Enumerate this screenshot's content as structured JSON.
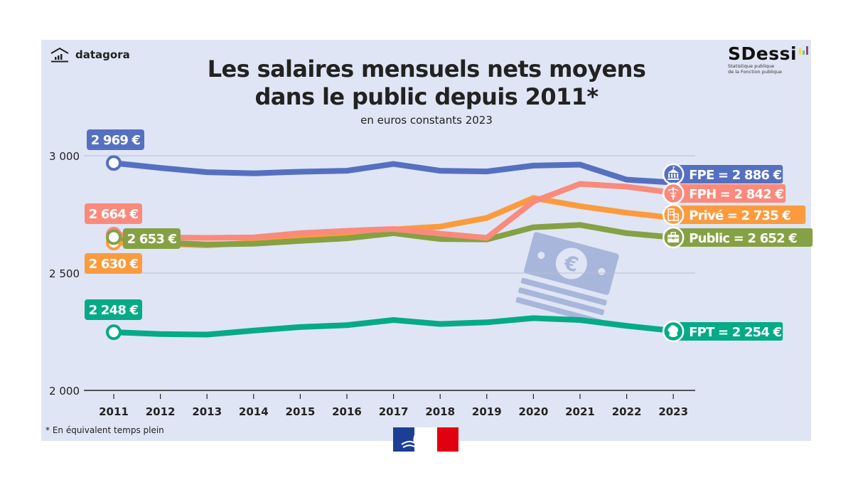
{
  "brand": {
    "logo_left": "datagora",
    "logo_right": "SDessi",
    "logo_right_sub1": "Statistique publique",
    "logo_right_sub2": "de la Fonction publique"
  },
  "header": {
    "title_line1": "Les salaires mensuels nets moyens",
    "title_line2": "dans le public depuis 2011*",
    "subtitle": "en euros constants 2023"
  },
  "footnote": "* En équivalent temps plein",
  "colors": {
    "background": "#dfe5f4",
    "FPE": "#5570c0",
    "FPH": "#fa8a7c",
    "Prive": "#fb9b3e",
    "Public": "#85a144",
    "FPT": "#05aa87",
    "decor": "#a9b6db"
  },
  "chart_data": {
    "type": "line",
    "title": "Les salaires mensuels nets moyens dans le public depuis 2011*",
    "subtitle": "en euros constants 2023",
    "xlabel": "",
    "ylabel": "",
    "ylim": [
      2000,
      3000
    ],
    "yticks": [
      2000,
      2500,
      3000
    ],
    "ytick_labels": [
      "2 000",
      "2 500",
      "3 000"
    ],
    "grid": true,
    "x": [
      2011,
      2012,
      2013,
      2014,
      2015,
      2016,
      2017,
      2018,
      2019,
      2020,
      2021,
      2022,
      2023
    ],
    "series": [
      {
        "key": "FPE",
        "name": "FPE",
        "color": "#5570c0",
        "icon": "government-building-icon",
        "values": [
          2969,
          2948,
          2930,
          2925,
          2932,
          2936,
          2965,
          2936,
          2933,
          2958,
          2962,
          2898,
          2886
        ],
        "start_label": "2 969 €",
        "end_label": "FPE = 2 886 €"
      },
      {
        "key": "FPH",
        "name": "FPH",
        "color": "#fa8a7c",
        "icon": "caduceus-icon",
        "values": [
          2664,
          2652,
          2650,
          2652,
          2670,
          2680,
          2688,
          2668,
          2650,
          2805,
          2880,
          2868,
          2842
        ],
        "start_label": "2 664 €",
        "end_label": "FPH = 2 842 €"
      },
      {
        "key": "Prive",
        "name": "Privé",
        "color": "#fb9b3e",
        "icon": "office-building-icon",
        "values": [
          2630,
          2625,
          2618,
          2630,
          2652,
          2662,
          2686,
          2698,
          2735,
          2820,
          2785,
          2757,
          2735
        ],
        "start_label": "2 630 €",
        "end_label": "Privé  = 2 735 €"
      },
      {
        "key": "Public",
        "name": "Public",
        "color": "#85a144",
        "icon": "briefcase-icon",
        "values": [
          2653,
          2630,
          2622,
          2625,
          2637,
          2648,
          2670,
          2645,
          2643,
          2695,
          2705,
          2670,
          2652
        ],
        "start_label": "2 653 €",
        "end_label": "Public = 2 652 €"
      },
      {
        "key": "FPT",
        "name": "FPT",
        "color": "#05aa87",
        "icon": "france-map-icon",
        "values": [
          2248,
          2240,
          2238,
          2255,
          2270,
          2278,
          2300,
          2283,
          2290,
          2308,
          2300,
          2275,
          2254
        ],
        "start_label": "2 248 €",
        "end_label": "FPT = 2 254 €"
      }
    ],
    "legend": "right-end labels"
  }
}
